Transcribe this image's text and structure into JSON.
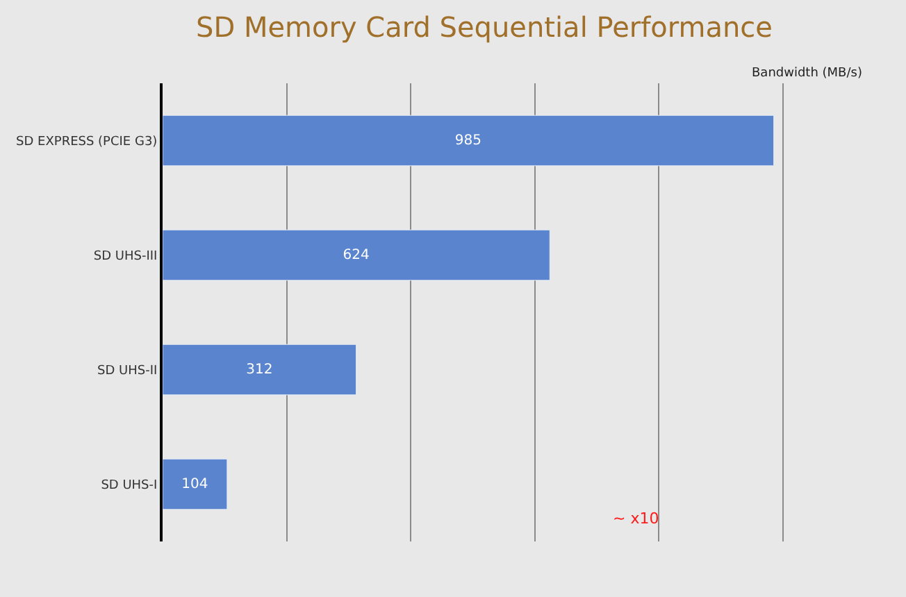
{
  "chart_data": {
    "type": "bar",
    "orientation": "horizontal",
    "title": "SD Memory Card Sequential Performance",
    "xlabel": "Bandwidth (MB/s)",
    "categories": [
      "SD EXPRESS (PCIE G3)",
      "SD UHS-III",
      "SD UHS-II",
      "SD UHS-I"
    ],
    "values": [
      985,
      624,
      312,
      104
    ],
    "color": "#5b84cf",
    "data_labels": true,
    "tick_labels": "y",
    "grid": "x",
    "legend": false,
    "annotations": [
      "~ x10"
    ]
  }
}
